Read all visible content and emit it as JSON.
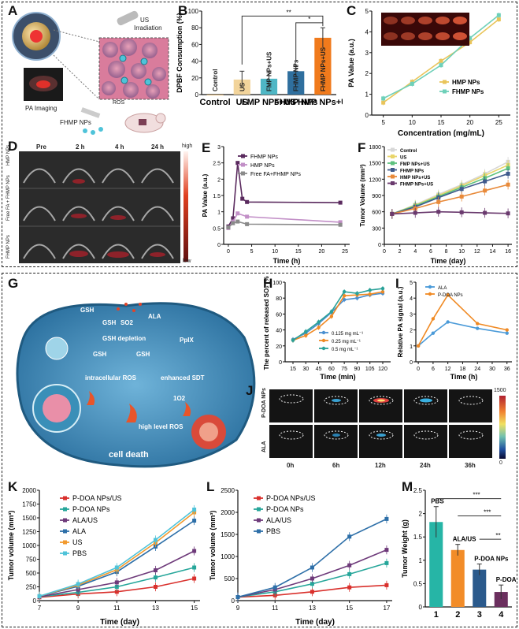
{
  "frames": {
    "top": "top-figure-frame",
    "bottom": "bottom-figure-frame"
  },
  "panel_letters": {
    "A": "A",
    "B": "B",
    "C": "C",
    "D": "D",
    "E": "E",
    "F": "F",
    "G": "G",
    "H": "H",
    "I": "I",
    "J": "J",
    "K": "K",
    "L": "L",
    "M": "M"
  },
  "panelA": {
    "us_label": "US",
    "irradiation_label": "Irradiation",
    "ros_label": "ROS",
    "pa_label": "PA Imaging",
    "np_label": "FHMP NPs"
  },
  "panelD": {
    "cols": [
      "Pre",
      "2 h",
      "4 h",
      "24 h"
    ],
    "rows": [
      "HMP NPs",
      "Free FA + FHMP NPs",
      "FHMP NPs"
    ],
    "scale_high": "high",
    "scale_low": "low"
  },
  "panelG": {
    "labels": [
      "GSH",
      "GSH",
      "SO2",
      "ALA",
      "GSH depletion",
      "PpIX",
      "GSH",
      "GSH",
      "intracellular ROS",
      "enhanced SDT",
      "1O2",
      "high level ROS",
      "cell death"
    ]
  },
  "panelJ": {
    "rows": [
      "P-DOA NPs",
      "ALA"
    ],
    "cols": [
      "0h",
      "6h",
      "12h",
      "24h",
      "36h"
    ],
    "scale_max": "1500",
    "scale_min": "0"
  },
  "colors": {
    "orange": "#f5a623",
    "teal": "#26b5a6",
    "navy": "#2b5a8c",
    "red": "#d9302c",
    "purple": "#6e3a7a",
    "blue": "#2d7fc4",
    "green": "#63c27a"
  },
  "chart_data": [
    {
      "id": "B",
      "type": "bar",
      "ylabel": "DPBF Consumption (%)",
      "ylim": [
        0,
        100
      ],
      "yticks": [
        0,
        20,
        40,
        60,
        80,
        100
      ],
      "categories": [
        "Control",
        "US",
        "FMP NPs+US",
        "FHMP NPs",
        "FHMP NPs+US"
      ],
      "values": [
        0,
        18,
        19,
        28,
        68
      ],
      "errors": [
        0,
        10,
        9,
        7,
        12
      ],
      "colors": [
        "#f5a623",
        "#f2d49b",
        "#4fb7c5",
        "#2f6f9e",
        "#f07a1c"
      ],
      "sig": [
        "**",
        "*"
      ]
    },
    {
      "id": "C",
      "type": "line",
      "xlabel": "Concentration (mg/mL)",
      "ylabel": "PA Value (a.u.)",
      "xlim": [
        3,
        27
      ],
      "ylim": [
        0,
        5
      ],
      "xticks": [
        5,
        10,
        15,
        20,
        25
      ],
      "yticks": [
        0,
        1,
        2,
        3,
        4,
        5
      ],
      "series": [
        {
          "name": "HMP NPs",
          "color": "#e9c45a",
          "x": [
            5,
            10,
            15,
            20,
            25
          ],
          "y": [
            0.6,
            1.6,
            2.6,
            3.5,
            4.6
          ]
        },
        {
          "name": "FHMP NPs",
          "color": "#6ed0b9",
          "x": [
            5,
            10,
            15,
            20,
            25
          ],
          "y": [
            0.8,
            1.5,
            2.4,
            3.7,
            4.8
          ]
        }
      ]
    },
    {
      "id": "E",
      "type": "line",
      "xlabel": "Time (h)",
      "ylabel": "PA Value (a.u.)",
      "xlim": [
        -1,
        26
      ],
      "ylim": [
        0,
        3.0
      ],
      "xticks": [
        0,
        5,
        10,
        15,
        20,
        25
      ],
      "yticks": [
        0,
        0.5,
        1.0,
        1.5,
        2.0,
        2.5,
        3.0
      ],
      "series": [
        {
          "name": "FHMP NPs",
          "color": "#5a2a5e",
          "x": [
            0,
            1,
            2,
            3,
            4,
            24
          ],
          "y": [
            0.55,
            0.8,
            2.5,
            1.4,
            1.3,
            1.28
          ]
        },
        {
          "name": "HMP NPs",
          "color": "#c28fc7",
          "x": [
            0,
            1,
            2,
            4,
            24
          ],
          "y": [
            0.5,
            0.7,
            0.95,
            0.85,
            0.68
          ]
        },
        {
          "name": "Free FA+FHMP NPs",
          "color": "#8a8a8a",
          "x": [
            0,
            1,
            2,
            4,
            24
          ],
          "y": [
            0.52,
            0.65,
            0.7,
            0.62,
            0.6
          ]
        }
      ]
    },
    {
      "id": "F",
      "type": "line",
      "xlabel": "Time (day)",
      "ylabel": "Tumor Volume (mm³)",
      "xlim": [
        0,
        16.5
      ],
      "ylim": [
        0,
        1800
      ],
      "xticks": [
        0,
        2,
        4,
        6,
        8,
        10,
        12,
        14,
        16
      ],
      "yticks": [
        0,
        300,
        600,
        900,
        1200,
        1500,
        1800
      ],
      "series": [
        {
          "name": "Control",
          "color": "#d7d7d7",
          "x": [
            1,
            4,
            7,
            10,
            13,
            16
          ],
          "y": [
            560,
            730,
            920,
            1100,
            1300,
            1520
          ]
        },
        {
          "name": "US",
          "color": "#e9d56a",
          "x": [
            1,
            4,
            7,
            10,
            13,
            16
          ],
          "y": [
            560,
            720,
            900,
            1080,
            1270,
            1460
          ]
        },
        {
          "name": "FMP NPs+US",
          "color": "#5ec27f",
          "x": [
            1,
            4,
            7,
            10,
            13,
            16
          ],
          "y": [
            560,
            710,
            880,
            1050,
            1220,
            1400
          ]
        },
        {
          "name": "FHMP NPs",
          "color": "#3f5a8c",
          "x": [
            1,
            4,
            7,
            10,
            13,
            16
          ],
          "y": [
            560,
            690,
            860,
            1020,
            1160,
            1300
          ]
        },
        {
          "name": "HMP NPs+US",
          "color": "#e88a3a",
          "x": [
            1,
            4,
            7,
            10,
            13,
            16
          ],
          "y": [
            560,
            660,
            780,
            880,
            990,
            1100
          ]
        },
        {
          "name": "FHMP NPs+US",
          "color": "#6a3a6e",
          "x": [
            1,
            4,
            7,
            10,
            13,
            16
          ],
          "y": [
            560,
            580,
            600,
            590,
            580,
            570
          ]
        }
      ]
    },
    {
      "id": "H",
      "type": "line",
      "xlabel": "Time (min)",
      "ylabel": "The percent of released SO₂ (%)",
      "ylim": [
        0,
        100
      ],
      "yticks": [
        0,
        20,
        40,
        60,
        80,
        100
      ],
      "categories": [
        "15",
        "30",
        "45",
        "60",
        "75",
        "90",
        "105",
        "120"
      ],
      "series": [
        {
          "name": "0.125 mg mL⁻¹",
          "color": "#4a8fd0",
          "y": [
            28,
            36,
            48,
            62,
            78,
            80,
            84,
            86
          ]
        },
        {
          "name": "0.25 mg mL⁻¹",
          "color": "#f08a24",
          "y": [
            27,
            33,
            43,
            57,
            83,
            84,
            85,
            88
          ]
        },
        {
          "name": "0.5 mg mL⁻¹",
          "color": "#2aa198",
          "y": [
            27,
            38,
            50,
            63,
            88,
            86,
            90,
            92
          ]
        }
      ]
    },
    {
      "id": "I",
      "type": "line",
      "xlabel": "Time (h)",
      "ylabel": "Relative PA signal (a.u.)",
      "xlim": [
        -1,
        38
      ],
      "ylim": [
        0,
        5
      ],
      "xticks": [
        0,
        6,
        12,
        18,
        24,
        30,
        36
      ],
      "yticks": [
        0,
        1,
        2,
        3,
        4,
        5
      ],
      "series": [
        {
          "name": "ALA",
          "color": "#4a9ad8",
          "x": [
            0,
            6,
            12,
            24,
            36
          ],
          "y": [
            1.0,
            1.8,
            2.5,
            2.1,
            1.8
          ]
        },
        {
          "name": "P-DOA NPs",
          "color": "#f08a24",
          "x": [
            0,
            6,
            12,
            24,
            36
          ],
          "y": [
            1.0,
            2.7,
            4.2,
            2.4,
            2.0
          ]
        }
      ]
    },
    {
      "id": "K",
      "type": "line",
      "xlabel": "Time (day)",
      "ylabel": "Tumor volume (mm³)",
      "xlim": [
        7,
        15.3
      ],
      "ylim": [
        0,
        2000
      ],
      "xticks": [
        7,
        9,
        11,
        13,
        15
      ],
      "yticks": [
        0,
        250,
        500,
        750,
        1000,
        1250,
        1500,
        1750,
        2000
      ],
      "series": [
        {
          "name": "P-DOA NPs/US",
          "color": "#d9302c",
          "x": [
            7,
            9,
            11,
            13,
            15
          ],
          "y": [
            60,
            120,
            160,
            250,
            400
          ]
        },
        {
          "name": "P-DOA NPs",
          "color": "#26a69a",
          "x": [
            7,
            9,
            11,
            13,
            15
          ],
          "y": [
            70,
            150,
            250,
            420,
            600
          ]
        },
        {
          "name": "ALA/US",
          "color": "#6e3a7a",
          "x": [
            7,
            9,
            11,
            13,
            15
          ],
          "y": [
            70,
            200,
            330,
            550,
            900
          ]
        },
        {
          "name": "ALA",
          "color": "#2d6fa8",
          "x": [
            7,
            9,
            11,
            13,
            15
          ],
          "y": [
            80,
            260,
            520,
            980,
            1450
          ]
        },
        {
          "name": "US",
          "color": "#f29a2e",
          "x": [
            7,
            9,
            11,
            13,
            15
          ],
          "y": [
            80,
            280,
            560,
            1050,
            1600
          ]
        },
        {
          "name": "PBS",
          "color": "#4fc3d9",
          "x": [
            7,
            9,
            11,
            13,
            15
          ],
          "y": [
            80,
            300,
            600,
            1100,
            1650
          ]
        }
      ]
    },
    {
      "id": "L",
      "type": "line",
      "xlabel": "Time (day)",
      "ylabel": "Tumor volume (mm³)",
      "xlim": [
        9,
        17.3
      ],
      "ylim": [
        0,
        2500
      ],
      "xticks": [
        9,
        11,
        13,
        15,
        17
      ],
      "yticks": [
        0,
        500,
        1000,
        1500,
        2000,
        2500
      ],
      "series": [
        {
          "name": "P-DOA NPs/US",
          "color": "#d9302c",
          "x": [
            9,
            11,
            13,
            15,
            17
          ],
          "y": [
            80,
            120,
            200,
            300,
            350
          ]
        },
        {
          "name": "P-DOA NPs",
          "color": "#26a69a",
          "x": [
            9,
            11,
            13,
            15,
            17
          ],
          "y": [
            80,
            200,
            380,
            600,
            850
          ]
        },
        {
          "name": "ALA/US",
          "color": "#6e3a7a",
          "x": [
            9,
            11,
            13,
            15,
            17
          ],
          "y": [
            80,
            250,
            500,
            800,
            1150
          ]
        },
        {
          "name": "PBS",
          "color": "#2d6fa8",
          "x": [
            9,
            11,
            13,
            15,
            17
          ],
          "y": [
            80,
            300,
            750,
            1450,
            1850
          ]
        }
      ]
    },
    {
      "id": "M",
      "type": "bar",
      "ylabel": "Tumor Weight (g)",
      "ylim": [
        0,
        2.5
      ],
      "yticks": [
        0,
        0.5,
        1.0,
        1.5,
        2.0,
        2.5
      ],
      "categories": [
        "1",
        "2",
        "3",
        "4"
      ],
      "values": [
        1.82,
        1.22,
        0.8,
        0.32
      ],
      "errors": [
        0.33,
        0.12,
        0.12,
        0.15
      ],
      "colors": [
        "#26b5a6",
        "#f28c28",
        "#2b5a8c",
        "#6b2f5e"
      ],
      "bar_labels": [
        "PBS",
        "ALA/US",
        "P-DOA NPs",
        "P-DOA NPs/US"
      ],
      "sig": [
        "***",
        "***",
        "**"
      ]
    }
  ]
}
